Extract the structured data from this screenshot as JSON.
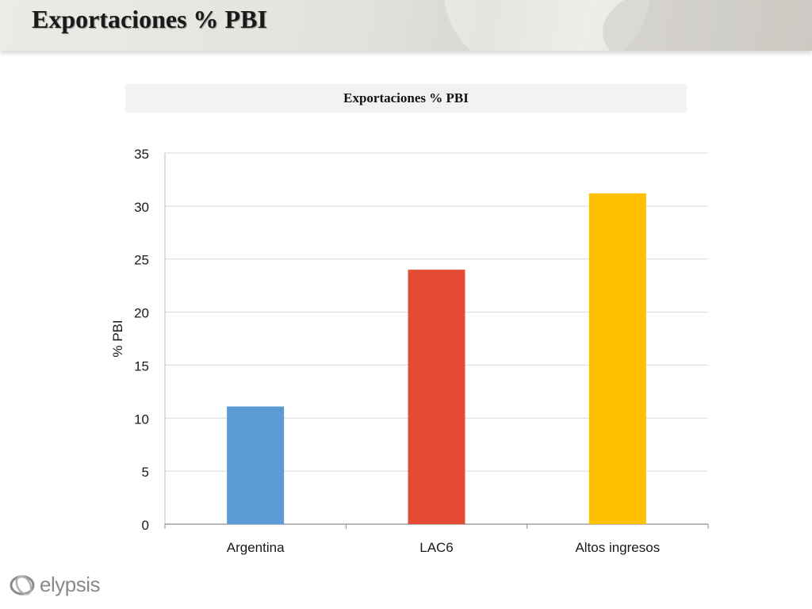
{
  "slide": {
    "title": "Exportaciones % PBI"
  },
  "chart_data": {
    "type": "bar",
    "title": "Exportaciones % PBI",
    "categories": [
      "Argentina",
      "LAC6",
      "Altos ingresos"
    ],
    "values": [
      11.1,
      24.0,
      31.2
    ],
    "colors": [
      "#5b9bd5",
      "#e54c35",
      "#ffc000"
    ],
    "xlabel": "",
    "ylabel": "% PBI",
    "ylim": [
      0,
      35
    ],
    "yticks": [
      0,
      5,
      10,
      15,
      20,
      25,
      30,
      35
    ],
    "grid": true,
    "legend": "none"
  },
  "branding": {
    "logo_text": "elypsis",
    "logo_color": "#8a8a8a"
  }
}
